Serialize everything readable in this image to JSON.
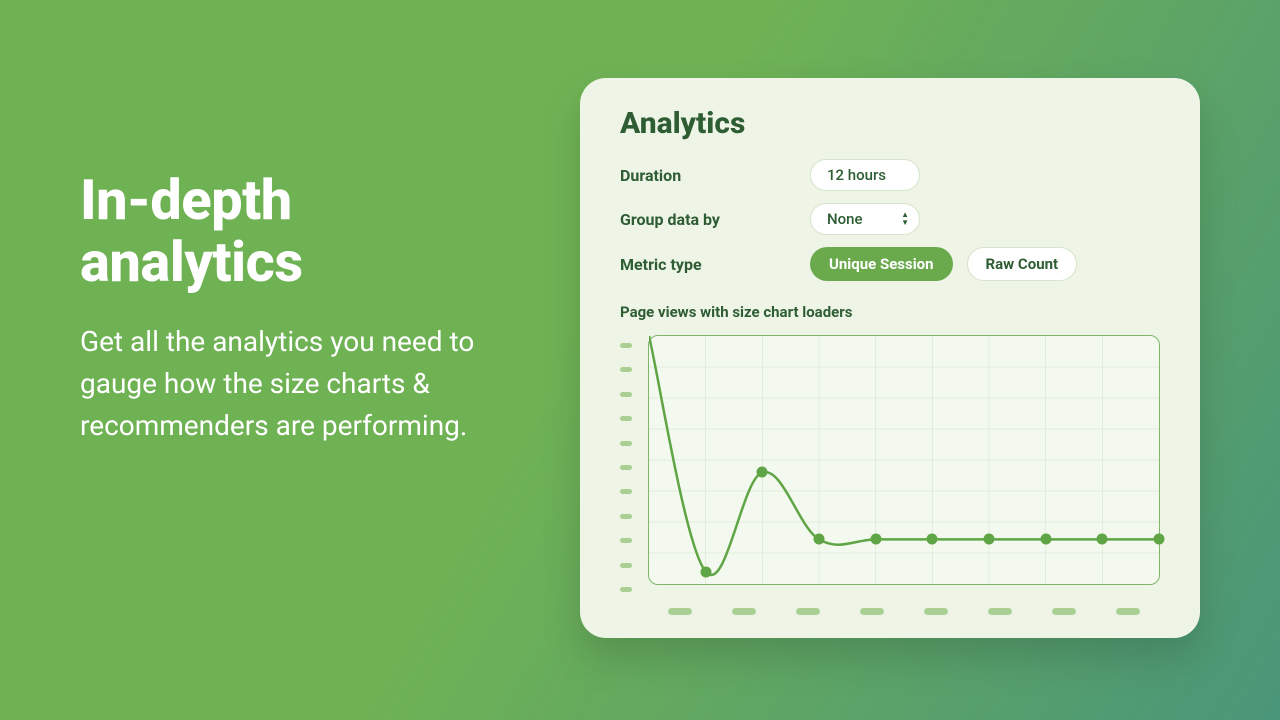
{
  "background": {
    "gradient_from": "#6fb254",
    "gradient_to": "#4a9679"
  },
  "promo": {
    "heading": "In-depth analytics",
    "body": "Get all the analytics you need to gauge how the size charts & recommenders are performing.",
    "text_color": "#ffffff",
    "heading_fontsize": 56,
    "body_fontsize": 28
  },
  "card": {
    "background_color": "#eef5e7",
    "border_radius": 26,
    "title": "Analytics",
    "title_color": "#2e5d34",
    "controls": {
      "duration": {
        "label": "Duration",
        "value": "12 hours"
      },
      "group_by": {
        "label": "Group data by",
        "value": "None"
      },
      "metric_type": {
        "label": "Metric type",
        "options": [
          {
            "label": "Unique Session",
            "active": true
          },
          {
            "label": "Raw Count",
            "active": false
          }
        ],
        "active_bg": "#6aaa4d",
        "active_text": "#ffffff",
        "inactive_bg": "#ffffff",
        "inactive_text": "#2e5d34"
      }
    },
    "chart": {
      "title": "Page views with size chart loaders",
      "type": "line",
      "plot_bg": "#f4f9ef",
      "grid_color": "#b7d7a6",
      "border_color": "#7fb56a",
      "line_color": "#5fa545",
      "line_width": 2.5,
      "marker_color": "#5fa545",
      "marker_radius": 5.5,
      "xlim": [
        0,
        9
      ],
      "ylim": [
        0,
        100
      ],
      "x_grid_count": 9,
      "y_grid_count": 8,
      "y_tick_dash_count": 11,
      "x_tick_dash_count": 8,
      "tick_dash_color": "#a9cf93",
      "series": {
        "x": [
          0,
          1,
          2,
          3,
          4,
          5,
          6,
          7,
          8,
          9
        ],
        "y": [
          100,
          5,
          45,
          18,
          18,
          18,
          18,
          18,
          18,
          18
        ],
        "marker_x": [
          1,
          2,
          3,
          4,
          5,
          6,
          7,
          8,
          9
        ],
        "marker_y": [
          5,
          45,
          18,
          18,
          18,
          18,
          18,
          18,
          18
        ]
      }
    }
  }
}
